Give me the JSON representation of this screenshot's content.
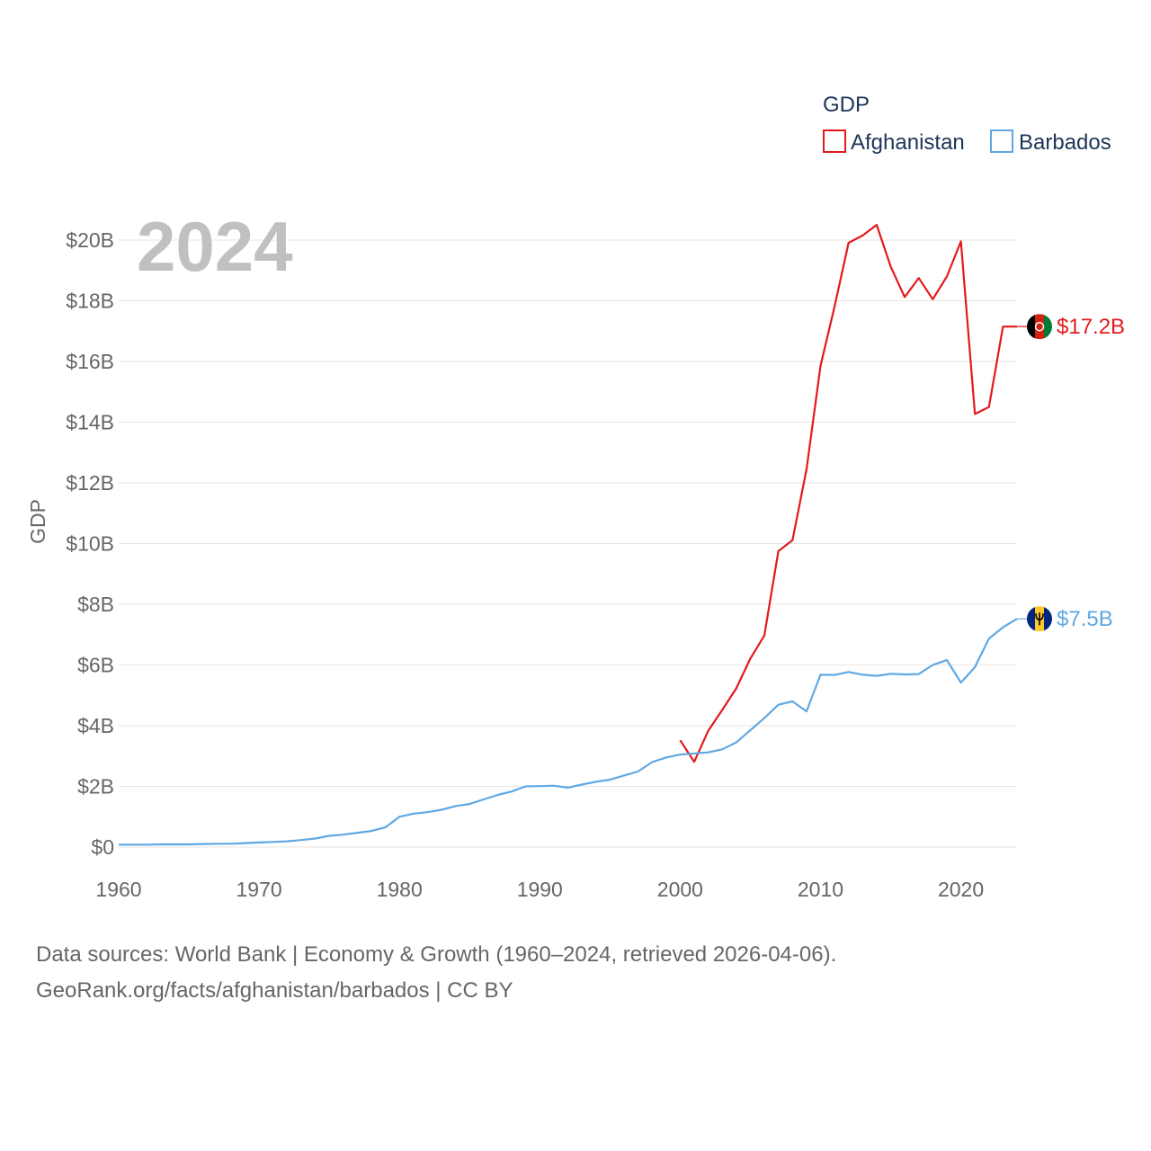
{
  "chart_data": {
    "type": "line",
    "title": "",
    "xlabel": "",
    "ylabel": "GDP",
    "year_label": "2024",
    "xlim": [
      1960,
      2024
    ],
    "ylim": [
      0,
      20
    ],
    "y_ticks": [
      0,
      2,
      4,
      6,
      8,
      10,
      12,
      14,
      16,
      18,
      20
    ],
    "y_tick_labels": [
      "$0",
      "$2B",
      "$4B",
      "$6B",
      "$8B",
      "$10B",
      "$12B",
      "$14B",
      "$16B",
      "$18B",
      "$20B"
    ],
    "x_ticks": [
      1960,
      1970,
      1980,
      1990,
      2000,
      2010,
      2020
    ],
    "x_tick_labels": [
      "1960",
      "1970",
      "1980",
      "1990",
      "2000",
      "2010",
      "2020"
    ],
    "legend": {
      "title": "GDP",
      "position": "top-right",
      "entries": [
        {
          "name": "Afghanistan",
          "color": "#e31a1c"
        },
        {
          "name": "Barbados",
          "color": "#5fa8e3"
        }
      ]
    },
    "series": [
      {
        "name": "Afghanistan",
        "color": "#e31a1c",
        "flag_icon": "afghanistan-flag-icon",
        "end_label": "$17.2B",
        "x": [
          2000,
          2001,
          2002,
          2003,
          2004,
          2005,
          2006,
          2007,
          2008,
          2009,
          2010,
          2011,
          2012,
          2013,
          2014,
          2015,
          2016,
          2017,
          2018,
          2019,
          2020,
          2021,
          2022,
          2023,
          2024
        ],
        "values": [
          3.52,
          2.81,
          3.83,
          4.52,
          5.23,
          6.21,
          6.97,
          9.75,
          10.11,
          12.44,
          15.86,
          17.81,
          19.91,
          20.15,
          20.5,
          19.13,
          18.12,
          18.75,
          18.05,
          18.8,
          19.96,
          14.27,
          14.5,
          17.15,
          17.15
        ]
      },
      {
        "name": "Barbados",
        "color": "#5fa8e3",
        "flag_icon": "barbados-flag-icon",
        "end_label": "$7.5B",
        "x": [
          1960,
          1961,
          1962,
          1963,
          1964,
          1965,
          1966,
          1967,
          1968,
          1969,
          1970,
          1971,
          1972,
          1973,
          1974,
          1975,
          1976,
          1977,
          1978,
          1979,
          1980,
          1981,
          1982,
          1983,
          1984,
          1985,
          1986,
          1987,
          1988,
          1989,
          1990,
          1991,
          1992,
          1993,
          1994,
          1995,
          1996,
          1997,
          1998,
          1999,
          2000,
          2001,
          2002,
          2003,
          2004,
          2005,
          2006,
          2007,
          2008,
          2009,
          2010,
          2011,
          2012,
          2013,
          2014,
          2015,
          2016,
          2017,
          2018,
          2019,
          2020,
          2021,
          2022,
          2023,
          2024
        ],
        "values": [
          0.08,
          0.08,
          0.08,
          0.09,
          0.09,
          0.09,
          0.1,
          0.11,
          0.11,
          0.13,
          0.15,
          0.17,
          0.19,
          0.23,
          0.28,
          0.37,
          0.41,
          0.47,
          0.53,
          0.65,
          1.0,
          1.1,
          1.15,
          1.23,
          1.35,
          1.42,
          1.57,
          1.72,
          1.83,
          2.0,
          2.01,
          2.02,
          1.96,
          2.06,
          2.15,
          2.22,
          2.36,
          2.49,
          2.8,
          2.95,
          3.05,
          3.08,
          3.12,
          3.22,
          3.45,
          3.85,
          4.25,
          4.69,
          4.8,
          4.47,
          5.68,
          5.67,
          5.77,
          5.68,
          5.64,
          5.71,
          5.69,
          5.7,
          6.0,
          6.16,
          5.42,
          5.93,
          6.87,
          7.24,
          7.52
        ]
      }
    ]
  },
  "source": {
    "line1": "Data sources: World Bank | Economy & Growth (1960–2024, retrieved 2026-04-06).",
    "line2": "GeoRank.org/facts/afghanistan/barbados | CC BY"
  }
}
